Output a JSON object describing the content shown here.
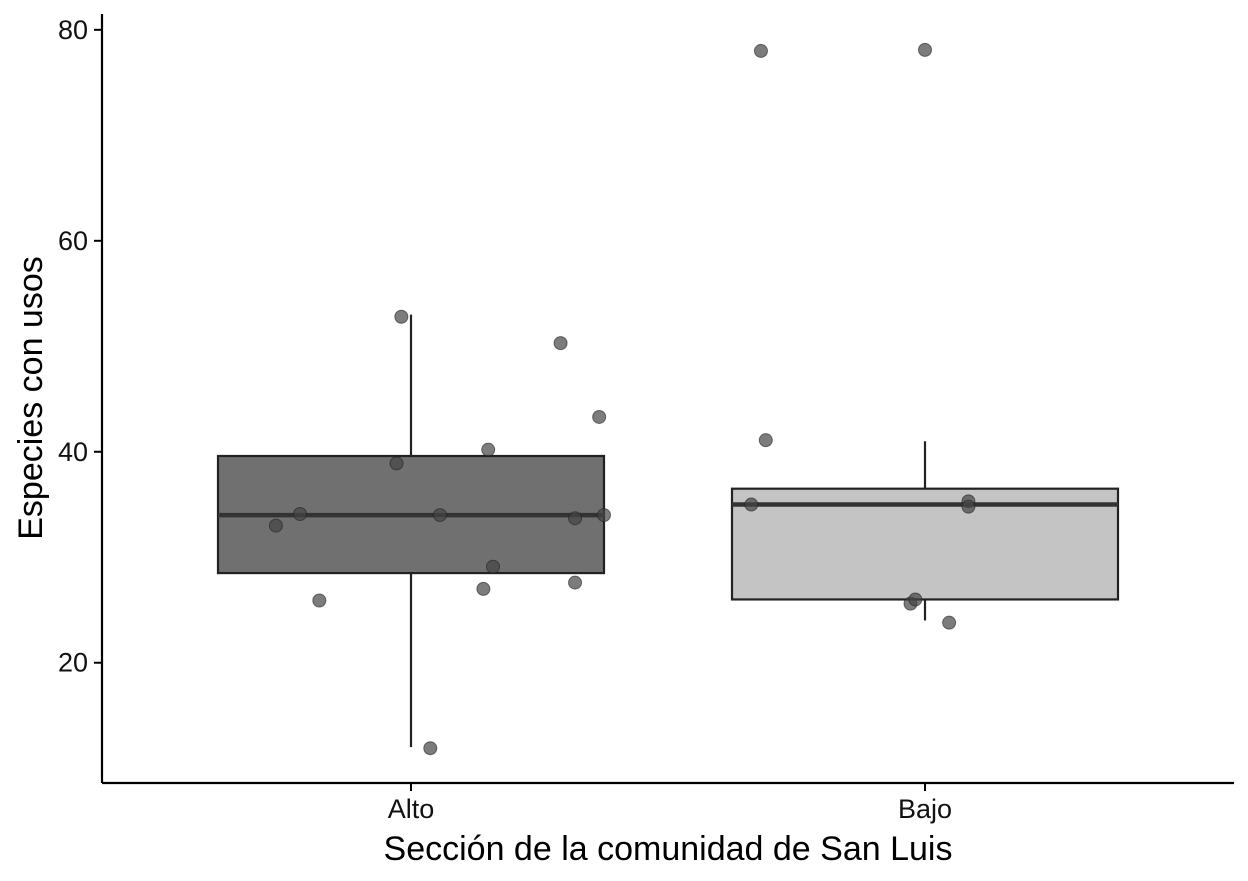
{
  "chart_data": {
    "type": "boxplot",
    "title": "",
    "xlabel": "Sección de la comunidad de San Luis",
    "ylabel": "Especies con usos",
    "categories": [
      "Alto",
      "Bajo"
    ],
    "ylim": [
      8.6,
      81.5
    ],
    "yticks": [
      20,
      40,
      60,
      80
    ],
    "grid": false,
    "legend": "none",
    "boxes": [
      {
        "category": "Alto",
        "whisker_low": 12,
        "q1": 28.5,
        "median": 34,
        "q3": 39.6,
        "whisker_high": 53,
        "fill": "#707070"
      },
      {
        "category": "Bajo",
        "whisker_low": 24,
        "q1": 26,
        "median": 35,
        "q3": 36.5,
        "whisker_high": 41,
        "fill": "#c4c4c4"
      }
    ],
    "points": [
      {
        "category": "Alto",
        "jitter": -0.28,
        "value": 33
      },
      {
        "category": "Alto",
        "jitter": -0.23,
        "value": 34.1
      },
      {
        "category": "Alto",
        "jitter": -0.19,
        "value": 25.9
      },
      {
        "category": "Alto",
        "jitter": -0.03,
        "value": 38.9
      },
      {
        "category": "Alto",
        "jitter": -0.02,
        "value": 52.8
      },
      {
        "category": "Alto",
        "jitter": 0.04,
        "value": 11.9
      },
      {
        "category": "Alto",
        "jitter": 0.06,
        "value": 34
      },
      {
        "category": "Alto",
        "jitter": 0.15,
        "value": 27
      },
      {
        "category": "Alto",
        "jitter": 0.16,
        "value": 40.2
      },
      {
        "category": "Alto",
        "jitter": 0.17,
        "value": 29.1
      },
      {
        "category": "Alto",
        "jitter": 0.31,
        "value": 50.3
      },
      {
        "category": "Alto",
        "jitter": 0.34,
        "value": 27.6
      },
      {
        "category": "Alto",
        "jitter": 0.34,
        "value": 33.7
      },
      {
        "category": "Alto",
        "jitter": 0.39,
        "value": 43.3
      },
      {
        "category": "Alto",
        "jitter": 0.4,
        "value": 34
      },
      {
        "category": "Bajo",
        "jitter": -0.36,
        "value": 35
      },
      {
        "category": "Bajo",
        "jitter": -0.34,
        "value": 78
      },
      {
        "category": "Bajo",
        "jitter": -0.33,
        "value": 41.1
      },
      {
        "category": "Bajo",
        "jitter": -0.03,
        "value": 25.6
      },
      {
        "category": "Bajo",
        "jitter": -0.02,
        "value": 26
      },
      {
        "category": "Bajo",
        "jitter": 0.0,
        "value": 78.1
      },
      {
        "category": "Bajo",
        "jitter": 0.05,
        "value": 23.8
      },
      {
        "category": "Bajo",
        "jitter": 0.09,
        "value": 35.3
      },
      {
        "category": "Bajo",
        "jitter": 0.09,
        "value": 34.8
      }
    ],
    "colors": {
      "point": "#444444",
      "box_stroke": "#222222",
      "axis": "#000000"
    }
  }
}
